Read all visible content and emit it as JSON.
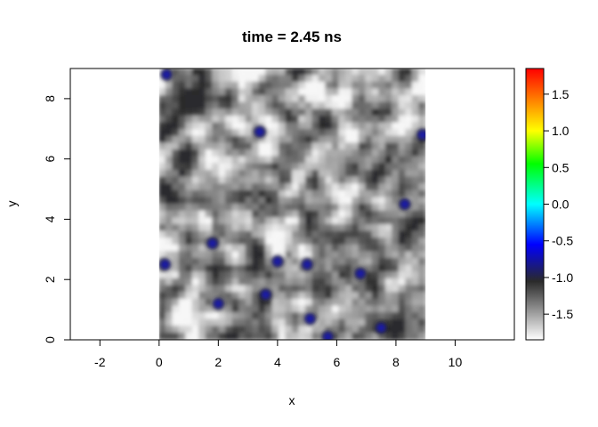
{
  "chart_data": {
    "type": "heatmap",
    "title": "time = 2.45 ns",
    "xlabel": "x",
    "ylabel": "y",
    "xlim": [
      -3,
      12
    ],
    "ylim": [
      0,
      9
    ],
    "x_ticks": [
      -2,
      0,
      2,
      4,
      6,
      8,
      10
    ],
    "y_ticks": [
      0,
      2,
      4,
      6,
      8
    ],
    "data_extent": {
      "x": [
        0,
        9
      ],
      "y": [
        0,
        9
      ]
    },
    "colorbar": {
      "range": [
        -1.85,
        1.85
      ],
      "ticks": [
        -1.5,
        -1.0,
        -0.5,
        0.0,
        0.5,
        1.0,
        1.5
      ],
      "tick_labels": [
        "-1.5",
        "-1.0",
        "-0.5",
        "0.0",
        "0.5",
        "1.0",
        "1.5"
      ],
      "colors": [
        {
          "value": -1.85,
          "color": "#ffffff"
        },
        {
          "value": -1.05,
          "color": "#2a2a2a"
        },
        {
          "value": -0.55,
          "color": "#0000ff"
        },
        {
          "value": 0.0,
          "color": "#00ffff"
        },
        {
          "value": 0.55,
          "color": "#00ff00"
        },
        {
          "value": 1.0,
          "color": "#ffff00"
        },
        {
          "value": 1.85,
          "color": "#ff0000"
        }
      ]
    },
    "blue_spots": [
      {
        "x": 0.2,
        "y": 2.5
      },
      {
        "x": 0.25,
        "y": 8.8
      },
      {
        "x": 3.4,
        "y": 6.9
      },
      {
        "x": 3.6,
        "y": 1.5
      },
      {
        "x": 4.0,
        "y": 2.6
      },
      {
        "x": 5.0,
        "y": 2.5
      },
      {
        "x": 5.1,
        "y": 0.7
      },
      {
        "x": 5.7,
        "y": 0.1
      },
      {
        "x": 1.8,
        "y": 3.2
      },
      {
        "x": 8.9,
        "y": 6.8
      },
      {
        "x": 7.5,
        "y": 0.4
      },
      {
        "x": 6.8,
        "y": 2.2
      },
      {
        "x": 8.3,
        "y": 4.5
      },
      {
        "x": 2.0,
        "y": 1.2
      }
    ],
    "seed": 245
  }
}
